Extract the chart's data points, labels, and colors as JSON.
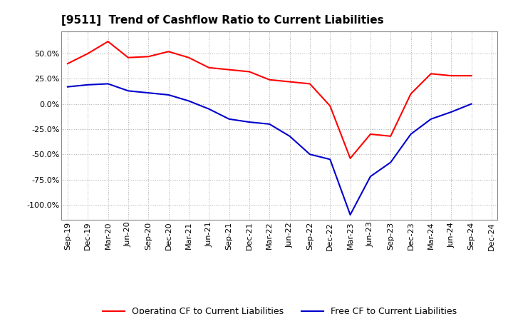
{
  "title": "[9511]  Trend of Cashflow Ratio to Current Liabilities",
  "x_labels": [
    "Sep-19",
    "Dec-19",
    "Mar-20",
    "Jun-20",
    "Sep-20",
    "Dec-20",
    "Mar-21",
    "Jun-21",
    "Sep-21",
    "Dec-21",
    "Mar-22",
    "Jun-22",
    "Sep-22",
    "Dec-22",
    "Mar-23",
    "Jun-23",
    "Sep-23",
    "Dec-23",
    "Mar-24",
    "Jun-24",
    "Sep-24",
    "Dec-24"
  ],
  "operating_cf": [
    40.0,
    50.0,
    62.0,
    46.0,
    47.0,
    52.0,
    46.0,
    36.0,
    34.0,
    32.0,
    24.0,
    22.0,
    20.0,
    -2.0,
    -54.0,
    -30.0,
    -32.0,
    10.0,
    30.0,
    28.0,
    28.0,
    null
  ],
  "free_cf": [
    17.0,
    19.0,
    20.0,
    13.0,
    11.0,
    9.0,
    3.0,
    -5.0,
    -15.0,
    -18.0,
    -20.0,
    -32.0,
    -50.0,
    -55.0,
    -110.0,
    -72.0,
    -58.0,
    -30.0,
    -15.0,
    -8.0,
    0.0,
    null
  ],
  "operating_color": "#FF0000",
  "free_color": "#0000CC",
  "background_color": "#FFFFFF",
  "plot_bg_color": "#FFFFFF",
  "grid_color": "#AAAAAA",
  "ylim": [
    -115.0,
    72.0
  ],
  "yticks": [
    -100.0,
    -75.0,
    -50.0,
    -25.0,
    0.0,
    25.0,
    50.0
  ],
  "title_fontsize": 11,
  "legend_fontsize": 9,
  "tick_fontsize": 8,
  "linewidth": 1.5
}
